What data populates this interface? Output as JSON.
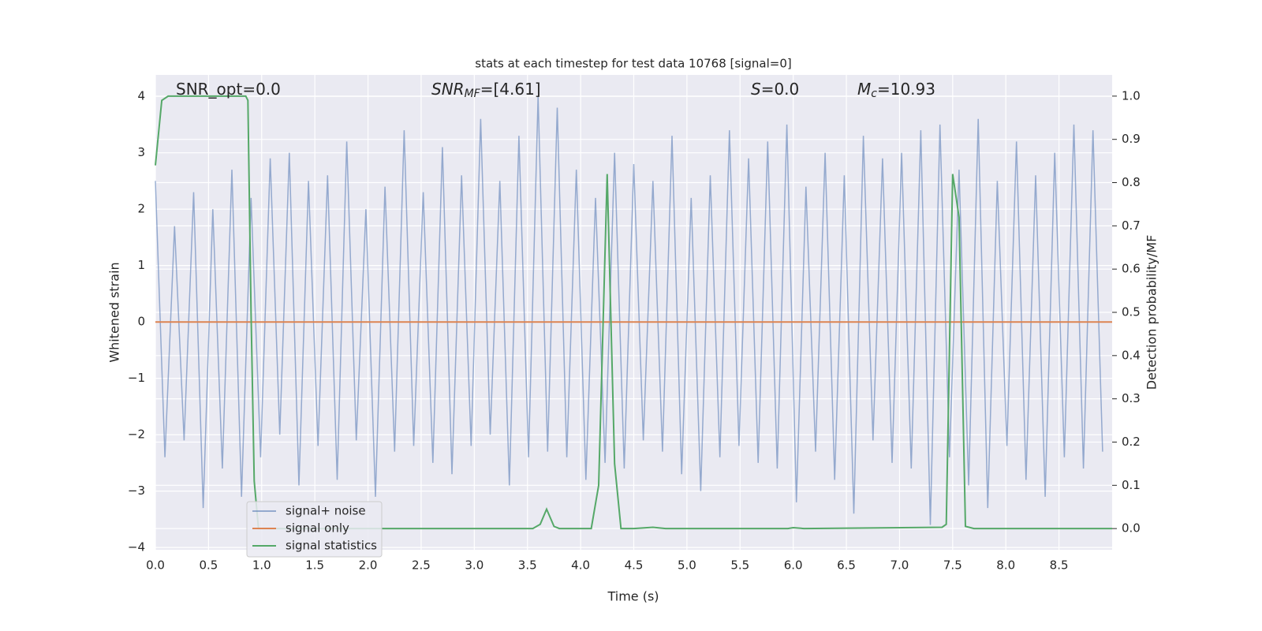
{
  "chart_data": {
    "type": "line",
    "title": "stats at each timestep for test data 10768 [signal=0]",
    "xlabel": "Time (s)",
    "ylabel": "Whitened strain",
    "y2label": "Detection probability/MF",
    "annotations": [
      {
        "text": "SNR_opt=0.0"
      },
      {
        "main": "SNR",
        "sub": "MF",
        "text": "=[4.61]"
      },
      {
        "main": "S",
        "text": "=0.0"
      },
      {
        "main": "M",
        "sub": "c",
        "text": "=10.93"
      }
    ],
    "xlim": [
      0,
      9.0
    ],
    "ylim": [
      -4.04,
      4.38
    ],
    "y2lim": [
      -0.049,
      1.049
    ],
    "xticks": [
      {
        "value": 0,
        "label": "0.0"
      },
      {
        "value": 0.5,
        "label": "0.5"
      },
      {
        "value": 1,
        "label": "1.0"
      },
      {
        "value": 1.5,
        "label": "1.5"
      },
      {
        "value": 2,
        "label": "2.0"
      },
      {
        "value": 2.5,
        "label": "2.5"
      },
      {
        "value": 3,
        "label": "3.0"
      },
      {
        "value": 3.5,
        "label": "3.5"
      },
      {
        "value": 4,
        "label": "4.0"
      },
      {
        "value": 4.5,
        "label": "4.5"
      },
      {
        "value": 5,
        "label": "5.0"
      },
      {
        "value": 5.5,
        "label": "5.5"
      },
      {
        "value": 6,
        "label": "6.0"
      },
      {
        "value": 6.5,
        "label": "6.5"
      },
      {
        "value": 7,
        "label": "7.0"
      },
      {
        "value": 7.5,
        "label": "7.5"
      },
      {
        "value": 8,
        "label": "8.0"
      },
      {
        "value": 8.5,
        "label": "8.5"
      }
    ],
    "yticks": [
      {
        "value": -4,
        "label": "−4"
      },
      {
        "value": -3,
        "label": "−3"
      },
      {
        "value": -2,
        "label": "−2"
      },
      {
        "value": -1,
        "label": "−1"
      },
      0,
      1,
      2,
      3,
      4
    ],
    "y2ticks": [
      {
        "value": 0,
        "label": "0.0"
      },
      {
        "value": 0.1,
        "label": "0.1"
      },
      {
        "value": 0.2,
        "label": "0.2"
      },
      {
        "value": 0.3,
        "label": "0.3"
      },
      {
        "value": 0.4,
        "label": "0.4"
      },
      {
        "value": 0.5,
        "label": "0.5"
      },
      {
        "value": 0.6,
        "label": "0.6"
      },
      {
        "value": 0.7,
        "label": "0.7"
      },
      {
        "value": 0.8,
        "label": "0.8"
      },
      {
        "value": 0.9,
        "label": "0.9"
      },
      {
        "value": 1,
        "label": "1.0"
      }
    ],
    "grid": true,
    "legend": "lower left",
    "series": [
      {
        "name": "signal+ noise",
        "color": "#4c72b0",
        "x": [
          0,
          0.09,
          0.18,
          0.27,
          0.36,
          0.45,
          0.54,
          0.63,
          0.72,
          0.81,
          0.9,
          0.99,
          1.08,
          1.17,
          1.26,
          1.35,
          1.44,
          1.53,
          1.62,
          1.71,
          1.8,
          1.89,
          1.98,
          2.07,
          2.16,
          2.25,
          2.34,
          2.43,
          2.52,
          2.61,
          2.7,
          2.79,
          2.88,
          2.97,
          3.06,
          3.15,
          3.24,
          3.33,
          3.42,
          3.51,
          3.6,
          3.69,
          3.78,
          3.87,
          3.96,
          4.05,
          4.14,
          4.23,
          4.32,
          4.41,
          4.5,
          4.59,
          4.68,
          4.77,
          4.86,
          4.95,
          5.04,
          5.13,
          5.22,
          5.31,
          5.4,
          5.49,
          5.58,
          5.67,
          5.76,
          5.85,
          5.94,
          6.03,
          6.12,
          6.21,
          6.3,
          6.39,
          6.48,
          6.57,
          6.66,
          6.75,
          6.84,
          6.93,
          7.02,
          7.11,
          7.2,
          7.29,
          7.38,
          7.47,
          7.56,
          7.65,
          7.74,
          7.83,
          7.92,
          8.01,
          8.1,
          8.19,
          8.28,
          8.37,
          8.46,
          8.55,
          8.64,
          8.73,
          8.82,
          8.91
        ],
        "values": [
          2.5,
          -2.4,
          1.7,
          -2.1,
          2.3,
          -3.3,
          2.0,
          -2.6,
          2.7,
          -3.1,
          2.2,
          -2.4,
          2.9,
          -2.0,
          3.0,
          -2.9,
          2.5,
          -2.2,
          2.6,
          -2.8,
          3.2,
          -2.1,
          2.0,
          -3.1,
          2.4,
          -2.3,
          3.4,
          -2.2,
          2.3,
          -2.5,
          3.1,
          -2.7,
          2.6,
          -2.2,
          3.6,
          -2.0,
          2.5,
          -2.9,
          3.3,
          -2.4,
          4.0,
          -2.3,
          3.8,
          -2.4,
          2.7,
          -2.8,
          2.2,
          -2.5,
          3.0,
          -2.6,
          2.8,
          -2.1,
          2.5,
          -2.3,
          3.3,
          -2.7,
          2.2,
          -3.0,
          2.6,
          -2.4,
          3.4,
          -2.2,
          2.9,
          -2.5,
          3.2,
          -2.6,
          3.5,
          -3.2,
          2.4,
          -2.3,
          3.0,
          -2.8,
          2.6,
          -3.4,
          3.3,
          -2.1,
          2.9,
          -2.5,
          3.0,
          -2.6,
          3.4,
          -3.6,
          3.5,
          -2.4,
          2.7,
          -2.9,
          3.6,
          -3.3,
          2.5,
          -2.2,
          3.2,
          -2.8,
          2.6,
          -3.1,
          3.0,
          -2.4,
          3.5,
          -2.6,
          3.4,
          -2.3
        ]
      },
      {
        "name": "signal only",
        "color": "#dd8452",
        "x": [
          0,
          9.0
        ],
        "values": [
          0,
          0
        ]
      },
      {
        "name": "signal statistics",
        "color": "#55a868",
        "axis": "y2",
        "x": [
          0,
          0.06,
          0.12,
          0.5,
          0.85,
          0.87,
          0.9,
          0.93,
          0.97,
          3.55,
          3.62,
          3.68,
          3.75,
          3.8,
          4.1,
          4.17,
          4.25,
          4.32,
          4.38,
          4.5,
          4.68,
          4.8,
          5.95,
          6.0,
          6.1,
          7.4,
          7.44,
          7.5,
          7.56,
          7.62,
          7.7,
          9.0
        ],
        "values": [
          0.84,
          0.99,
          1.0,
          1.0,
          1.0,
          0.99,
          0.5,
          0.11,
          0.0,
          0.0,
          0.01,
          0.045,
          0.005,
          0.0,
          0.0,
          0.1,
          0.82,
          0.15,
          0.0,
          0.0,
          0.003,
          0.0,
          0.0,
          0.002,
          0.0,
          0.003,
          0.01,
          0.82,
          0.72,
          0.005,
          0.0,
          0.0
        ]
      }
    ]
  }
}
